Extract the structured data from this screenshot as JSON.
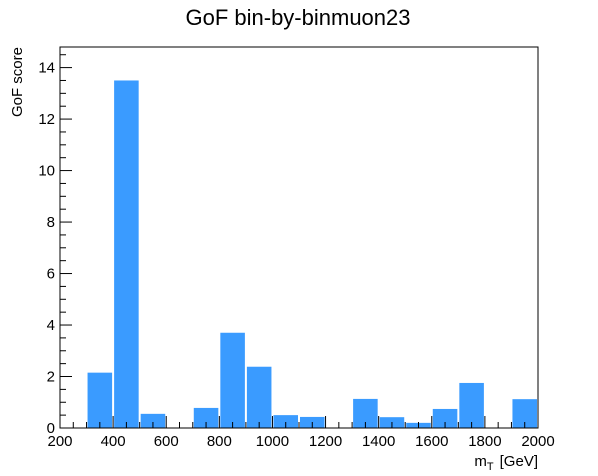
{
  "chart_data": {
    "type": "bar",
    "title": "GoF bin-by-binmuon23",
    "xlabel_main": "m",
    "xlabel_sub": "T",
    "xlabel_unit": "[GeV]",
    "ylabel": "GoF score",
    "xlim": [
      200,
      2000
    ],
    "ylim": [
      0,
      14.8
    ],
    "x_ticks": [
      200,
      400,
      600,
      800,
      1000,
      1200,
      1400,
      1600,
      1800,
      2000
    ],
    "y_ticks": [
      0,
      2,
      4,
      6,
      8,
      10,
      12,
      14
    ],
    "bin_width": 100,
    "bins": [
      {
        "x_low": 300,
        "value": 2.15
      },
      {
        "x_low": 400,
        "value": 13.5
      },
      {
        "x_low": 500,
        "value": 0.55
      },
      {
        "x_low": 700,
        "value": 0.78
      },
      {
        "x_low": 800,
        "value": 3.7
      },
      {
        "x_low": 900,
        "value": 2.38
      },
      {
        "x_low": 1000,
        "value": 0.5
      },
      {
        "x_low": 1100,
        "value": 0.43
      },
      {
        "x_low": 1300,
        "value": 1.13
      },
      {
        "x_low": 1400,
        "value": 0.42
      },
      {
        "x_low": 1500,
        "value": 0.2
      },
      {
        "x_low": 1600,
        "value": 0.74
      },
      {
        "x_low": 1700,
        "value": 1.75
      },
      {
        "x_low": 1900,
        "value": 1.12
      }
    ],
    "bar_color": "#3a9bff",
    "grid": false,
    "legend": "none"
  }
}
